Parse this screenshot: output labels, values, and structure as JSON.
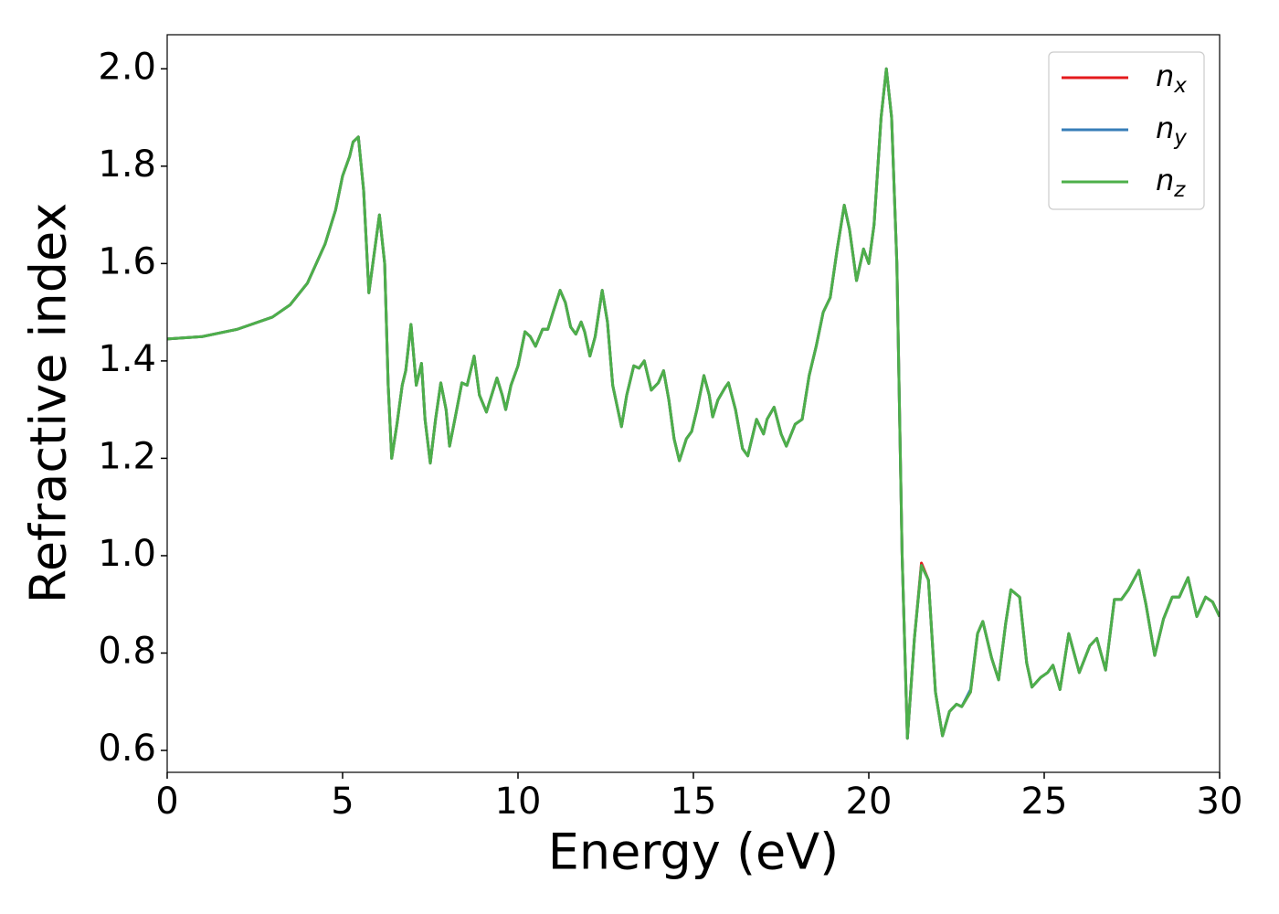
{
  "chart_data": {
    "type": "line",
    "xlabel": "Energy (eV)",
    "ylabel": "Refractive index",
    "x": [
      0,
      1,
      2,
      3,
      3.5,
      4,
      4.5,
      4.8,
      5.0,
      5.2,
      5.3,
      5.45,
      5.6,
      5.75,
      5.9,
      6.05,
      6.2,
      6.3,
      6.4,
      6.55,
      6.7,
      6.8,
      6.95,
      7.1,
      7.25,
      7.35,
      7.5,
      7.65,
      7.8,
      7.95,
      8.05,
      8.2,
      8.4,
      8.55,
      8.75,
      8.9,
      9.1,
      9.25,
      9.4,
      9.55,
      9.65,
      9.8,
      10.0,
      10.2,
      10.35,
      10.5,
      10.7,
      10.85,
      11.0,
      11.2,
      11.35,
      11.5,
      11.65,
      11.8,
      11.9,
      12.05,
      12.2,
      12.4,
      12.55,
      12.7,
      12.95,
      13.1,
      13.3,
      13.45,
      13.6,
      13.8,
      14.0,
      14.15,
      14.3,
      14.45,
      14.6,
      14.8,
      14.95,
      15.1,
      15.3,
      15.45,
      15.55,
      15.7,
      15.9,
      16.0,
      16.2,
      16.4,
      16.55,
      16.8,
      17.0,
      17.1,
      17.3,
      17.5,
      17.65,
      17.9,
      18.1,
      18.3,
      18.5,
      18.7,
      18.9,
      19.1,
      19.3,
      19.45,
      19.65,
      19.85,
      20.0,
      20.15,
      20.35,
      20.5,
      20.65,
      20.8,
      20.95,
      21.1,
      21.3,
      21.5,
      21.7,
      21.9,
      22.1,
      22.3,
      22.5,
      22.65,
      22.9,
      23.1,
      23.25,
      23.5,
      23.7,
      23.9,
      24.05,
      24.3,
      24.5,
      24.65,
      24.9,
      25.1,
      25.25,
      25.45,
      25.7,
      25.85,
      26.0,
      26.3,
      26.5,
      26.75,
      27.0,
      27.2,
      27.4,
      27.7,
      27.9,
      28.15,
      28.4,
      28.65,
      28.85,
      29.1,
      29.35,
      29.6,
      29.8,
      30.0
    ],
    "series": [
      {
        "name": "nx",
        "color": "#e41a1c",
        "values": [
          1.445,
          1.45,
          1.465,
          1.49,
          1.515,
          1.56,
          1.64,
          1.71,
          1.78,
          1.82,
          1.85,
          1.86,
          1.75,
          1.54,
          1.62,
          1.7,
          1.6,
          1.35,
          1.2,
          1.27,
          1.35,
          1.38,
          1.475,
          1.35,
          1.395,
          1.28,
          1.19,
          1.28,
          1.355,
          1.3,
          1.225,
          1.28,
          1.355,
          1.35,
          1.41,
          1.33,
          1.295,
          1.33,
          1.365,
          1.33,
          1.3,
          1.35,
          1.39,
          1.46,
          1.45,
          1.43,
          1.465,
          1.465,
          1.5,
          1.545,
          1.52,
          1.47,
          1.455,
          1.48,
          1.46,
          1.41,
          1.45,
          1.545,
          1.48,
          1.35,
          1.265,
          1.33,
          1.39,
          1.385,
          1.4,
          1.34,
          1.355,
          1.38,
          1.32,
          1.24,
          1.195,
          1.24,
          1.255,
          1.3,
          1.37,
          1.33,
          1.285,
          1.32,
          1.345,
          1.355,
          1.3,
          1.22,
          1.205,
          1.28,
          1.25,
          1.28,
          1.305,
          1.25,
          1.225,
          1.27,
          1.28,
          1.37,
          1.43,
          1.5,
          1.53,
          1.63,
          1.72,
          1.67,
          1.565,
          1.63,
          1.6,
          1.68,
          1.9,
          2.0,
          1.9,
          1.6,
          1.0,
          0.625,
          0.83,
          0.985,
          0.95,
          0.72,
          0.63,
          0.68,
          0.695,
          0.69,
          0.72,
          0.84,
          0.865,
          0.79,
          0.745,
          0.86,
          0.93,
          0.915,
          0.78,
          0.73,
          0.75,
          0.76,
          0.775,
          0.725,
          0.84,
          0.8,
          0.76,
          0.815,
          0.83,
          0.765,
          0.91,
          0.91,
          0.93,
          0.97,
          0.9,
          0.795,
          0.87,
          0.915,
          0.915,
          0.955,
          0.875,
          0.915,
          0.905,
          0.875
        ]
      },
      {
        "name": "ny",
        "color": "#377eb8",
        "values": [
          1.445,
          1.45,
          1.465,
          1.49,
          1.515,
          1.56,
          1.64,
          1.71,
          1.78,
          1.82,
          1.85,
          1.86,
          1.75,
          1.54,
          1.62,
          1.7,
          1.6,
          1.35,
          1.2,
          1.27,
          1.35,
          1.38,
          1.475,
          1.35,
          1.395,
          1.28,
          1.19,
          1.28,
          1.355,
          1.3,
          1.225,
          1.28,
          1.355,
          1.35,
          1.41,
          1.33,
          1.295,
          1.33,
          1.365,
          1.33,
          1.3,
          1.35,
          1.39,
          1.46,
          1.45,
          1.43,
          1.465,
          1.465,
          1.5,
          1.545,
          1.52,
          1.47,
          1.455,
          1.48,
          1.46,
          1.41,
          1.45,
          1.545,
          1.48,
          1.35,
          1.265,
          1.33,
          1.39,
          1.385,
          1.4,
          1.34,
          1.355,
          1.38,
          1.32,
          1.24,
          1.195,
          1.24,
          1.255,
          1.3,
          1.37,
          1.33,
          1.285,
          1.32,
          1.345,
          1.355,
          1.3,
          1.22,
          1.205,
          1.28,
          1.25,
          1.28,
          1.305,
          1.25,
          1.225,
          1.27,
          1.28,
          1.37,
          1.43,
          1.5,
          1.53,
          1.63,
          1.72,
          1.67,
          1.565,
          1.63,
          1.6,
          1.68,
          1.9,
          2.0,
          1.9,
          1.6,
          1.0,
          0.625,
          0.83,
          0.98,
          0.95,
          0.72,
          0.63,
          0.68,
          0.695,
          0.69,
          0.725,
          0.84,
          0.865,
          0.79,
          0.745,
          0.86,
          0.93,
          0.915,
          0.78,
          0.73,
          0.75,
          0.76,
          0.775,
          0.725,
          0.84,
          0.8,
          0.76,
          0.815,
          0.83,
          0.765,
          0.91,
          0.91,
          0.93,
          0.97,
          0.9,
          0.795,
          0.87,
          0.915,
          0.915,
          0.955,
          0.875,
          0.915,
          0.905,
          0.875
        ]
      },
      {
        "name": "nz",
        "color": "#4daf4a",
        "values": [
          1.445,
          1.45,
          1.465,
          1.49,
          1.515,
          1.56,
          1.64,
          1.71,
          1.78,
          1.82,
          1.85,
          1.86,
          1.75,
          1.54,
          1.62,
          1.7,
          1.6,
          1.35,
          1.2,
          1.27,
          1.35,
          1.38,
          1.475,
          1.35,
          1.395,
          1.28,
          1.19,
          1.28,
          1.355,
          1.3,
          1.225,
          1.28,
          1.355,
          1.35,
          1.41,
          1.33,
          1.295,
          1.33,
          1.365,
          1.33,
          1.3,
          1.35,
          1.39,
          1.46,
          1.45,
          1.43,
          1.465,
          1.465,
          1.5,
          1.545,
          1.52,
          1.47,
          1.455,
          1.48,
          1.46,
          1.41,
          1.45,
          1.545,
          1.48,
          1.35,
          1.265,
          1.33,
          1.39,
          1.385,
          1.4,
          1.34,
          1.355,
          1.38,
          1.32,
          1.24,
          1.195,
          1.24,
          1.255,
          1.3,
          1.37,
          1.33,
          1.285,
          1.32,
          1.345,
          1.355,
          1.3,
          1.22,
          1.205,
          1.28,
          1.25,
          1.28,
          1.305,
          1.25,
          1.225,
          1.27,
          1.28,
          1.37,
          1.43,
          1.5,
          1.53,
          1.63,
          1.72,
          1.67,
          1.565,
          1.63,
          1.6,
          1.68,
          1.9,
          2.0,
          1.9,
          1.6,
          1.0,
          0.625,
          0.83,
          0.98,
          0.95,
          0.72,
          0.63,
          0.68,
          0.695,
          0.69,
          0.72,
          0.84,
          0.865,
          0.79,
          0.745,
          0.86,
          0.93,
          0.915,
          0.78,
          0.73,
          0.75,
          0.76,
          0.775,
          0.725,
          0.84,
          0.8,
          0.76,
          0.815,
          0.83,
          0.765,
          0.91,
          0.91,
          0.93,
          0.97,
          0.9,
          0.795,
          0.87,
          0.915,
          0.915,
          0.955,
          0.875,
          0.915,
          0.905,
          0.875
        ]
      }
    ],
    "xlim": [
      0,
      30
    ],
    "xticks": [
      0,
      5,
      10,
      15,
      20,
      25,
      30
    ],
    "ylim": [
      0.555,
      2.07
    ],
    "yticks": [
      {
        "value": 0.6,
        "label": "0.6"
      },
      {
        "value": 0.8,
        "label": "0.8"
      },
      {
        "value": 1.0,
        "label": "1.0"
      },
      {
        "value": 1.2,
        "label": "1.2"
      },
      {
        "value": 1.4,
        "label": "1.4"
      },
      {
        "value": 1.6,
        "label": "1.6"
      },
      {
        "value": 1.8,
        "label": "1.8"
      },
      {
        "value": 2.0,
        "label": "2.0"
      }
    ],
    "legend": "upper right",
    "grid": false
  }
}
